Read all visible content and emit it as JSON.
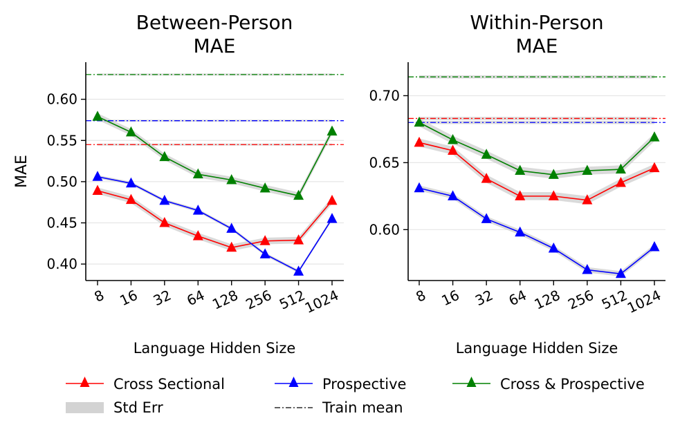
{
  "chart_data": [
    {
      "type": "line",
      "title_lines": [
        "Between-Person",
        "MAE"
      ],
      "xlabel": "Language Hidden Size",
      "ylabel": "MAE",
      "categories": [
        "8",
        "16",
        "32",
        "64",
        "128",
        "256",
        "512",
        "1024"
      ],
      "ylim": [
        0.38,
        0.645
      ],
      "yticks": [
        0.4,
        0.45,
        0.5,
        0.55,
        0.6
      ],
      "ytick_labels": [
        "0.40",
        "0.45",
        "0.50",
        "0.55",
        "0.60"
      ],
      "grid": "horizontal",
      "series": [
        {
          "name": "Cross Sectional",
          "color": "#ff0000",
          "values": [
            0.489,
            0.478,
            0.45,
            0.434,
            0.42,
            0.428,
            0.429,
            0.477
          ],
          "stderr": 0.004,
          "train_mean": 0.545
        },
        {
          "name": "Prospective",
          "color": "#0000ff",
          "values": [
            0.506,
            0.498,
            0.477,
            0.465,
            0.443,
            0.412,
            0.391,
            0.455
          ],
          "stderr": 0.002,
          "train_mean": 0.574
        },
        {
          "name": "Cross & Prospective",
          "color": "#008000",
          "values": [
            0.579,
            0.56,
            0.53,
            0.509,
            0.502,
            0.492,
            0.483,
            0.561
          ],
          "stderr": 0.004,
          "train_mean": 0.63
        }
      ]
    },
    {
      "type": "line",
      "title_lines": [
        "Within-Person",
        "MAE"
      ],
      "xlabel": "Language Hidden Size",
      "ylabel": "",
      "categories": [
        "8",
        "16",
        "32",
        "64",
        "128",
        "256",
        "512",
        "1024"
      ],
      "ylim": [
        0.562,
        0.725
      ],
      "yticks": [
        0.6,
        0.65,
        0.7
      ],
      "ytick_labels": [
        "0.60",
        "0.65",
        "0.70"
      ],
      "grid": "horizontal",
      "series": [
        {
          "name": "Cross Sectional",
          "color": "#ff0000",
          "values": [
            0.665,
            0.659,
            0.638,
            0.625,
            0.625,
            0.622,
            0.635,
            0.646
          ],
          "stderr": 0.003,
          "train_mean": 0.683
        },
        {
          "name": "Prospective",
          "color": "#0000ff",
          "values": [
            0.631,
            0.625,
            0.608,
            0.598,
            0.586,
            0.57,
            0.567,
            0.587
          ],
          "stderr": 0.002,
          "train_mean": 0.68
        },
        {
          "name": "Cross & Prospective",
          "color": "#008000",
          "values": [
            0.68,
            0.667,
            0.656,
            0.644,
            0.641,
            0.644,
            0.645,
            0.669
          ],
          "stderr": 0.003,
          "train_mean": 0.714
        }
      ]
    }
  ],
  "legend": {
    "items": [
      {
        "label": "Cross Sectional",
        "kind": "line-marker",
        "color": "#ff0000"
      },
      {
        "label": "Prospective",
        "kind": "line-marker",
        "color": "#0000ff"
      },
      {
        "label": "Cross & Prospective",
        "kind": "line-marker",
        "color": "#008000"
      },
      {
        "label": "Std Err",
        "kind": "patch",
        "color": "#d3d3d3"
      },
      {
        "label": "Train mean",
        "kind": "dashdot",
        "color": "#000000"
      }
    ]
  }
}
